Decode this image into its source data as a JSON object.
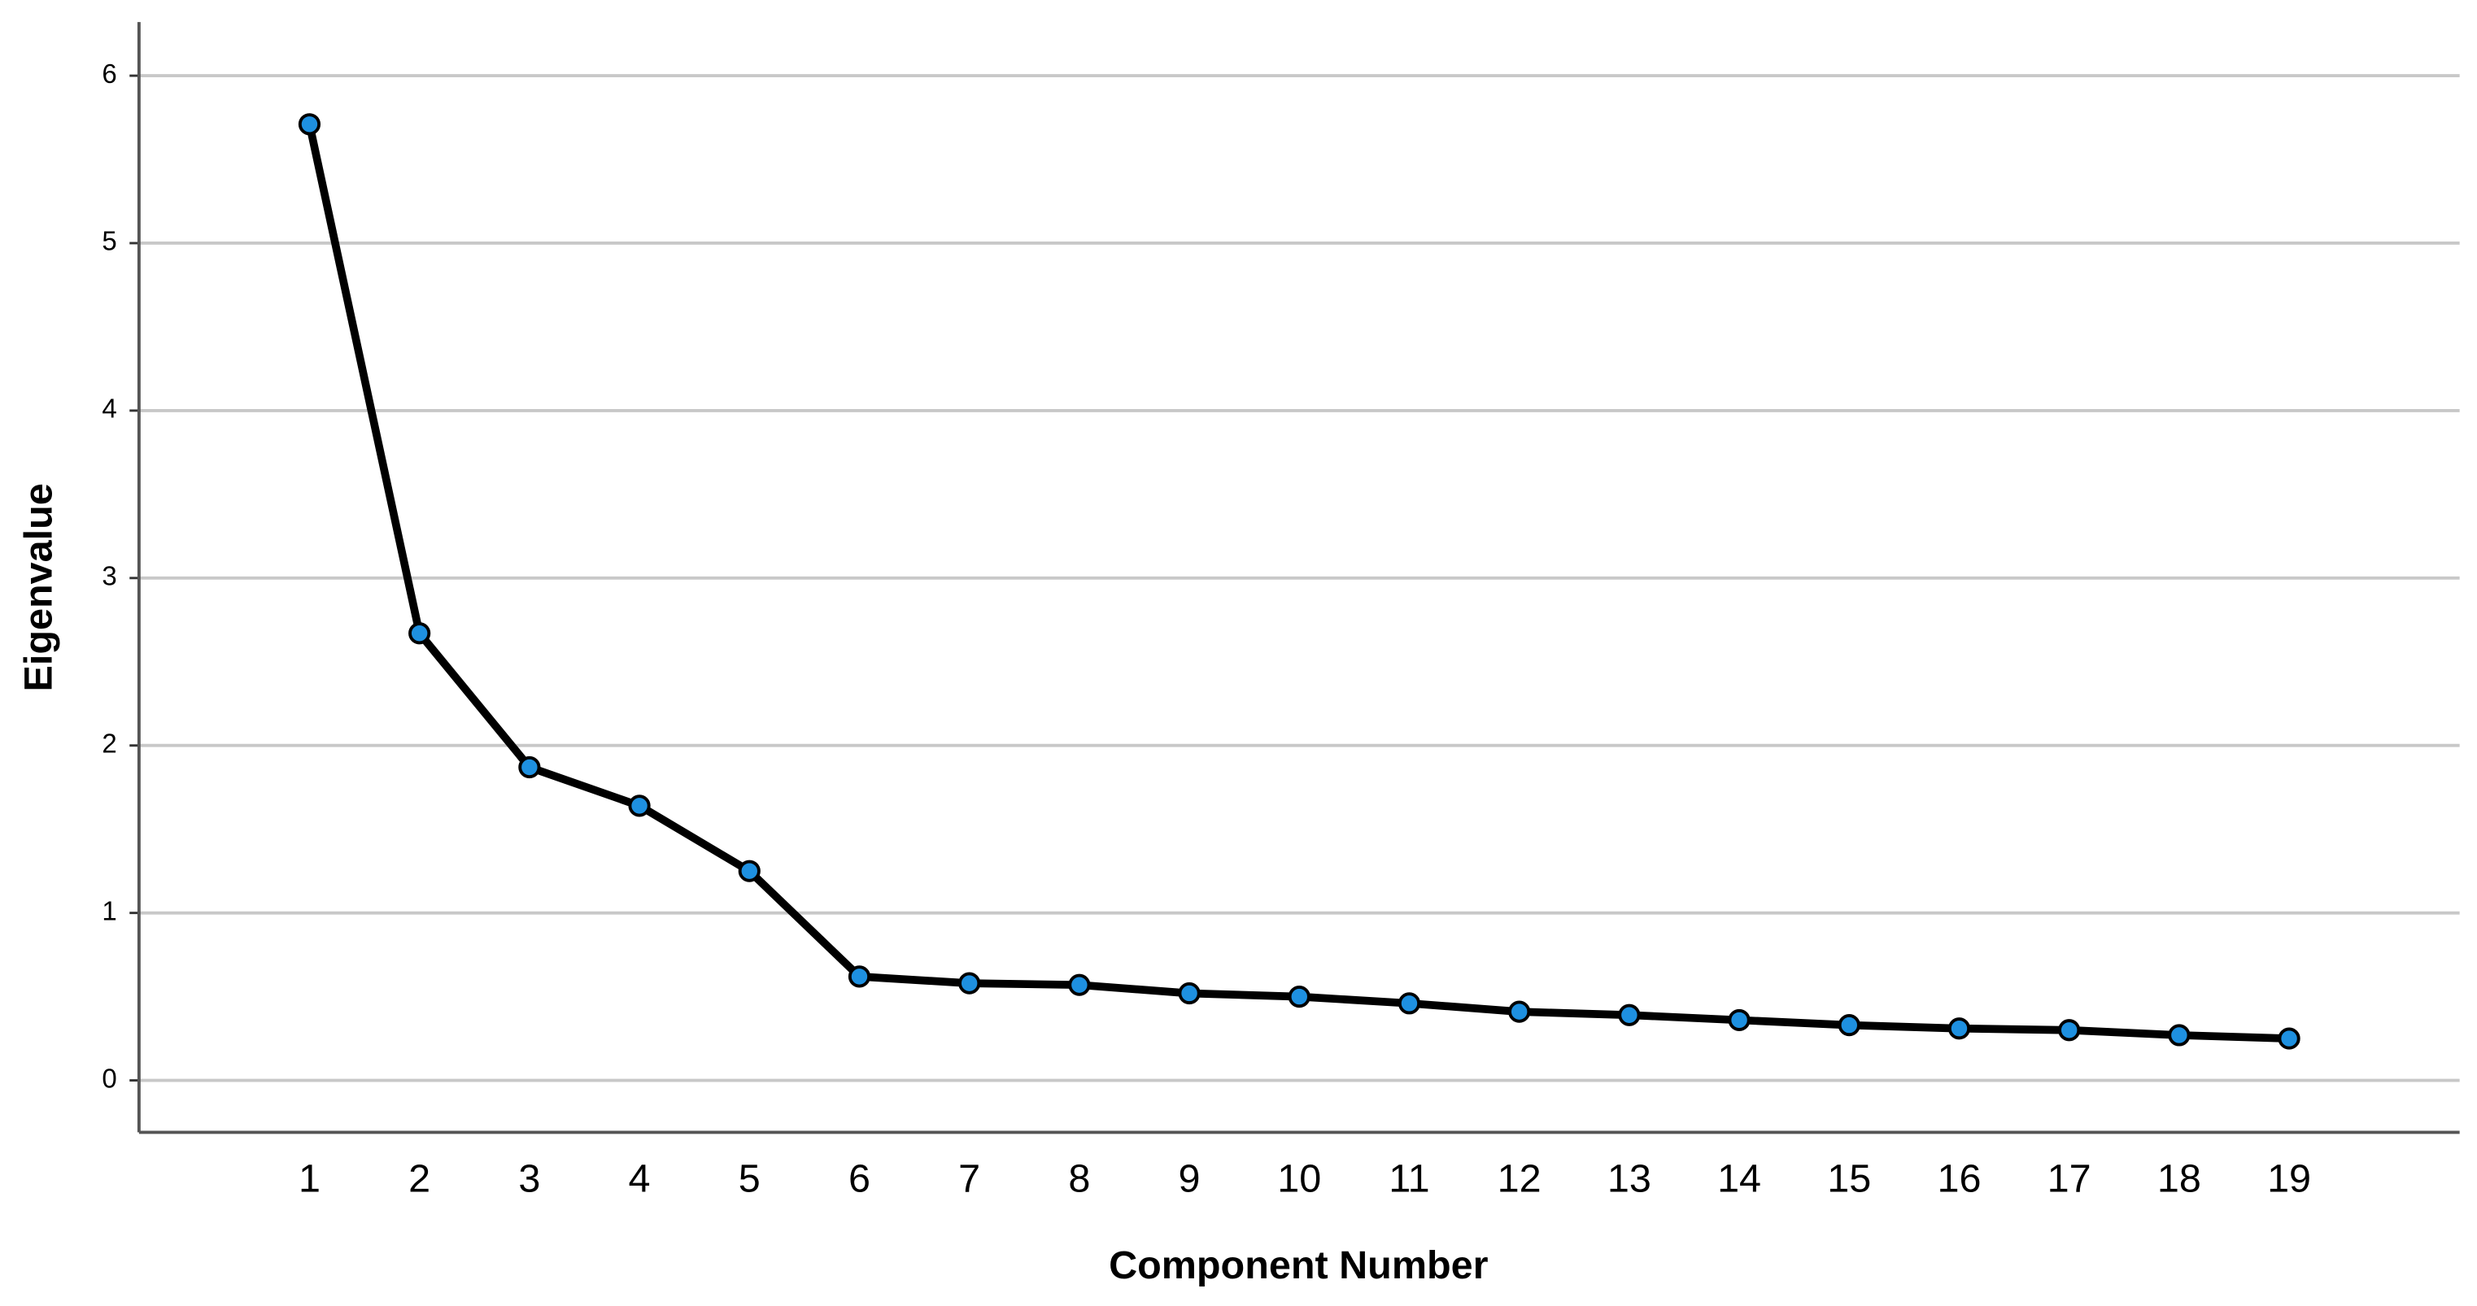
{
  "chart_data": {
    "type": "line",
    "x_label": "Component Number",
    "y_label": "Eigenvalue",
    "x": [
      1,
      2,
      3,
      4,
      5,
      6,
      7,
      8,
      9,
      10,
      11,
      12,
      13,
      14,
      15,
      16,
      17,
      18,
      19
    ],
    "series": [
      {
        "color": "#1e90e0",
        "values": [
          5.71,
          2.67,
          1.87,
          1.64,
          1.25,
          0.62,
          0.58,
          0.57,
          0.52,
          0.5,
          0.46,
          0.41,
          0.39,
          0.36,
          0.33,
          0.31,
          0.3,
          0.27,
          0.25
        ]
      }
    ],
    "xlim": [
      -0.55,
      20.55
    ],
    "xticks": [
      1,
      2,
      3,
      4,
      5,
      6,
      7,
      8,
      9,
      10,
      11,
      12,
      13,
      14,
      15,
      16,
      17,
      18,
      19
    ],
    "ylim": [
      -0.31,
      6.32
    ],
    "yticks": [
      0,
      1,
      2,
      3,
      4,
      5,
      6
    ],
    "grid": true
  }
}
